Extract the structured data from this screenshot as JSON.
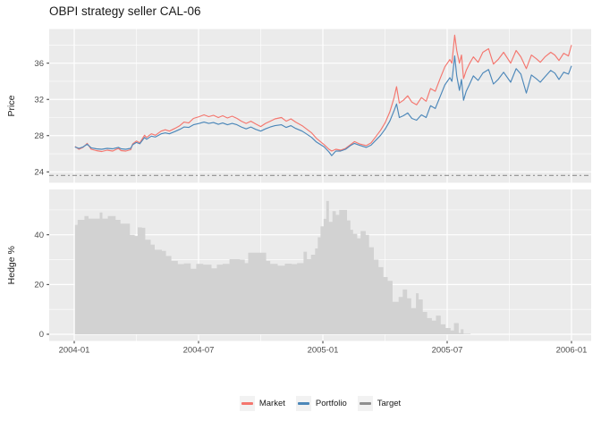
{
  "header": {
    "title": "OBPI strategy seller CAL-06"
  },
  "chart_data": {
    "type": "line+area",
    "title": "OBPI strategy seller CAL-06",
    "panels": [
      {
        "name": "price",
        "ylabel": "Price",
        "yticks": [
          24,
          28,
          32,
          36
        ],
        "yminor": [
          26,
          30,
          34,
          38
        ],
        "ylim": [
          22.8,
          39.8
        ]
      },
      {
        "name": "hedge",
        "ylabel": "Hedge %",
        "yticks": [
          0,
          20,
          40
        ],
        "yminor": [
          10,
          30,
          50
        ],
        "ylim": [
          -2.9,
          58.3
        ]
      }
    ],
    "x": {
      "ticks": [
        "2004-01",
        "2004-07",
        "2005-01",
        "2005-07",
        "2006-01"
      ],
      "minor": [
        "2004-04",
        "2004-10",
        "2005-04",
        "2005-10"
      ],
      "domain_months": [
        -1.21,
        24.95
      ]
    },
    "target_value": 23.6,
    "legend": [
      {
        "label": "Market",
        "color": "#F4766E"
      },
      {
        "label": "Portfolio",
        "color": "#4C87B9"
      },
      {
        "label": "Target",
        "color": "#8F8F8F"
      }
    ],
    "colors": {
      "panel_bg": "#EBEBEB",
      "grid": "#FFFFFF",
      "hedge_fill": "#D2D2D2",
      "tick_text": "#4D4D4D",
      "tick_mark": "#333333",
      "text": "#1A1A1A"
    },
    "price_points": [
      [
        "2004-01-02",
        26.8,
        26.75
      ],
      [
        "2004-01-08",
        26.5,
        26.6
      ],
      [
        "2004-01-14",
        26.7,
        26.75
      ],
      [
        "2004-01-20",
        27.15,
        27.05
      ],
      [
        "2004-01-26",
        26.5,
        26.65
      ],
      [
        "2004-02-03",
        26.35,
        26.55
      ],
      [
        "2004-02-11",
        26.25,
        26.5
      ],
      [
        "2004-02-19",
        26.4,
        26.6
      ],
      [
        "2004-02-27",
        26.3,
        26.55
      ],
      [
        "2004-03-05",
        26.6,
        26.7
      ],
      [
        "2004-03-09",
        26.35,
        26.55
      ],
      [
        "2004-03-16",
        26.3,
        26.5
      ],
      [
        "2004-03-23",
        26.45,
        26.6
      ],
      [
        "2004-03-26",
        27.1,
        27.0
      ],
      [
        "2004-04-01",
        27.4,
        27.25
      ],
      [
        "2004-04-06",
        27.2,
        27.1
      ],
      [
        "2004-04-13",
        28.05,
        27.8
      ],
      [
        "2004-04-16",
        27.8,
        27.6
      ],
      [
        "2004-04-23",
        28.2,
        27.95
      ],
      [
        "2004-04-29",
        28.05,
        27.85
      ],
      [
        "2004-05-07",
        28.5,
        28.2
      ],
      [
        "2004-05-13",
        28.65,
        28.3
      ],
      [
        "2004-05-19",
        28.5,
        28.2
      ],
      [
        "2004-05-27",
        28.8,
        28.45
      ],
      [
        "2004-06-04",
        29.1,
        28.7
      ],
      [
        "2004-06-10",
        29.5,
        28.95
      ],
      [
        "2004-06-17",
        29.4,
        28.9
      ],
      [
        "2004-06-24",
        29.9,
        29.2
      ],
      [
        "2004-07-02",
        30.1,
        29.35
      ],
      [
        "2004-07-09",
        30.3,
        29.5
      ],
      [
        "2004-07-16",
        30.1,
        29.35
      ],
      [
        "2004-07-23",
        30.25,
        29.45
      ],
      [
        "2004-07-30",
        30.0,
        29.25
      ],
      [
        "2004-08-06",
        30.2,
        29.4
      ],
      [
        "2004-08-13",
        29.95,
        29.2
      ],
      [
        "2004-08-20",
        30.15,
        29.35
      ],
      [
        "2004-08-27",
        29.9,
        29.2
      ],
      [
        "2004-09-03",
        29.6,
        28.95
      ],
      [
        "2004-09-10",
        29.35,
        28.75
      ],
      [
        "2004-09-17",
        29.6,
        28.95
      ],
      [
        "2004-09-24",
        29.3,
        28.7
      ],
      [
        "2004-10-01",
        29.0,
        28.5
      ],
      [
        "2004-10-08",
        29.35,
        28.75
      ],
      [
        "2004-10-15",
        29.6,
        28.95
      ],
      [
        "2004-10-22",
        29.85,
        29.1
      ],
      [
        "2004-11-01",
        30.0,
        29.2
      ],
      [
        "2004-11-08",
        29.6,
        28.9
      ],
      [
        "2004-11-15",
        29.85,
        29.1
      ],
      [
        "2004-11-22",
        29.5,
        28.8
      ],
      [
        "2004-12-01",
        29.1,
        28.5
      ],
      [
        "2004-12-08",
        28.7,
        28.15
      ],
      [
        "2004-12-15",
        28.3,
        27.8
      ],
      [
        "2004-12-22",
        27.7,
        27.3
      ],
      [
        "2005-01-03",
        27.0,
        26.75
      ],
      [
        "2005-01-10",
        26.5,
        26.2
      ],
      [
        "2005-01-14",
        26.3,
        25.8
      ],
      [
        "2005-01-20",
        26.5,
        26.3
      ],
      [
        "2005-01-27",
        26.4,
        26.3
      ],
      [
        "2005-02-04",
        26.6,
        26.5
      ],
      [
        "2005-02-11",
        27.0,
        26.9
      ],
      [
        "2005-02-17",
        27.35,
        27.15
      ],
      [
        "2005-02-24",
        27.1,
        26.95
      ],
      [
        "2005-03-04",
        26.9,
        26.7
      ],
      [
        "2005-03-11",
        27.2,
        26.95
      ],
      [
        "2005-03-18",
        27.9,
        27.5
      ],
      [
        "2005-03-25",
        28.6,
        28.05
      ],
      [
        "2005-04-01",
        29.4,
        28.7
      ],
      [
        "2005-04-08",
        30.6,
        29.6
      ],
      [
        "2005-04-14",
        32.1,
        30.7
      ],
      [
        "2005-04-18",
        33.4,
        31.5
      ],
      [
        "2005-04-22",
        31.6,
        30.0
      ],
      [
        "2005-04-28",
        31.9,
        30.2
      ],
      [
        "2005-05-04",
        32.4,
        30.5
      ],
      [
        "2005-05-10",
        31.7,
        29.9
      ],
      [
        "2005-05-17",
        31.4,
        29.7
      ],
      [
        "2005-05-24",
        32.2,
        30.3
      ],
      [
        "2005-05-31",
        31.8,
        30.0
      ],
      [
        "2005-06-07",
        33.2,
        31.3
      ],
      [
        "2005-06-14",
        32.9,
        31.0
      ],
      [
        "2005-06-21",
        34.3,
        32.3
      ],
      [
        "2005-06-28",
        35.6,
        33.6
      ],
      [
        "2005-07-05",
        36.4,
        34.4
      ],
      [
        "2005-07-08",
        36.0,
        34.0
      ],
      [
        "2005-07-12",
        39.1,
        36.8
      ],
      [
        "2005-07-15",
        37.4,
        34.6
      ],
      [
        "2005-07-19",
        36.0,
        33.0
      ],
      [
        "2005-07-22",
        36.9,
        34.2
      ],
      [
        "2005-07-25",
        34.3,
        31.9
      ],
      [
        "2005-07-29",
        35.2,
        32.9
      ],
      [
        "2005-08-03",
        35.9,
        33.6
      ],
      [
        "2005-08-09",
        36.7,
        34.6
      ],
      [
        "2005-08-16",
        36.1,
        34.1
      ],
      [
        "2005-08-23",
        37.2,
        34.9
      ],
      [
        "2005-09-01",
        37.6,
        35.3
      ],
      [
        "2005-09-08",
        35.9,
        33.7
      ],
      [
        "2005-09-15",
        36.4,
        34.2
      ],
      [
        "2005-09-23",
        37.2,
        35.0
      ],
      [
        "2005-10-03",
        36.0,
        33.9
      ],
      [
        "2005-10-11",
        37.4,
        35.4
      ],
      [
        "2005-10-18",
        36.7,
        34.8
      ],
      [
        "2005-10-26",
        35.4,
        32.7
      ],
      [
        "2005-11-03",
        36.9,
        34.7
      ],
      [
        "2005-11-10",
        36.5,
        34.3
      ],
      [
        "2005-11-16",
        36.1,
        33.9
      ],
      [
        "2005-11-23",
        36.7,
        34.5
      ],
      [
        "2005-12-01",
        37.2,
        35.2
      ],
      [
        "2005-12-07",
        36.9,
        34.9
      ],
      [
        "2005-12-13",
        36.3,
        34.2
      ],
      [
        "2005-12-20",
        37.1,
        35.0
      ],
      [
        "2005-12-27",
        36.8,
        34.8
      ],
      [
        "2006-01-01",
        38.0,
        35.7
      ]
    ],
    "hedge_points": [
      [
        "2004-01-02",
        44
      ],
      [
        "2004-01-06",
        46
      ],
      [
        "2004-01-12",
        46
      ],
      [
        "2004-01-16",
        47.5
      ],
      [
        "2004-01-22",
        46.5
      ],
      [
        "2004-02-01",
        46.5
      ],
      [
        "2004-02-08",
        49
      ],
      [
        "2004-02-12",
        46.5
      ],
      [
        "2004-02-20",
        47.5
      ],
      [
        "2004-03-01",
        46
      ],
      [
        "2004-03-08",
        44.5
      ],
      [
        "2004-03-16",
        44.5
      ],
      [
        "2004-03-22",
        40
      ],
      [
        "2004-03-29",
        39.5
      ],
      [
        "2004-04-03",
        43
      ],
      [
        "2004-04-09",
        42.8
      ],
      [
        "2004-04-14",
        38
      ],
      [
        "2004-04-22",
        36
      ],
      [
        "2004-04-28",
        34
      ],
      [
        "2004-05-08",
        33.5
      ],
      [
        "2004-05-14",
        31.5
      ],
      [
        "2004-05-22",
        29.5
      ],
      [
        "2004-06-01",
        28.2
      ],
      [
        "2004-06-10",
        28.5
      ],
      [
        "2004-06-20",
        26.3
      ],
      [
        "2004-06-28",
        28.3
      ],
      [
        "2004-07-08",
        28
      ],
      [
        "2004-07-20",
        26.5
      ],
      [
        "2004-07-28",
        28
      ],
      [
        "2004-08-06",
        28.3
      ],
      [
        "2004-08-16",
        30.2
      ],
      [
        "2004-09-01",
        30
      ],
      [
        "2004-09-08",
        28.6
      ],
      [
        "2004-09-13",
        32.8
      ],
      [
        "2004-10-01",
        32.8
      ],
      [
        "2004-10-09",
        29.5
      ],
      [
        "2004-10-15",
        28.3
      ],
      [
        "2004-10-26",
        27.6
      ],
      [
        "2004-11-06",
        28.4
      ],
      [
        "2004-11-16",
        28.2
      ],
      [
        "2004-11-24",
        28.6
      ],
      [
        "2004-12-03",
        33.2
      ],
      [
        "2004-12-08",
        30.2
      ],
      [
        "2004-12-14",
        32
      ],
      [
        "2004-12-20",
        34.5
      ],
      [
        "2004-12-24",
        39
      ],
      [
        "2004-12-28",
        43.4
      ],
      [
        "2005-01-02",
        46.4
      ],
      [
        "2005-01-06",
        53.6
      ],
      [
        "2005-01-10",
        45.2
      ],
      [
        "2005-01-15",
        49.5
      ],
      [
        "2005-01-20",
        48
      ],
      [
        "2005-01-25",
        50
      ],
      [
        "2005-02-01",
        50
      ],
      [
        "2005-02-06",
        45.8
      ],
      [
        "2005-02-11",
        42
      ],
      [
        "2005-02-15",
        40.4
      ],
      [
        "2005-02-21",
        38.6
      ],
      [
        "2005-02-26",
        41.5
      ],
      [
        "2005-03-03",
        40
      ],
      [
        "2005-03-08",
        35
      ],
      [
        "2005-03-15",
        30
      ],
      [
        "2005-03-22",
        27
      ],
      [
        "2005-03-29",
        23
      ],
      [
        "2005-04-05",
        21.5
      ],
      [
        "2005-04-12",
        13
      ],
      [
        "2005-04-21",
        15
      ],
      [
        "2005-04-27",
        18
      ],
      [
        "2005-05-03",
        14.5
      ],
      [
        "2005-05-09",
        10.5
      ],
      [
        "2005-05-16",
        16.5
      ],
      [
        "2005-05-20",
        14
      ],
      [
        "2005-05-26",
        9
      ],
      [
        "2005-06-02",
        6.5
      ],
      [
        "2005-06-09",
        5.5
      ],
      [
        "2005-06-15",
        7.5
      ],
      [
        "2005-06-22",
        4
      ],
      [
        "2005-06-29",
        2.5
      ],
      [
        "2005-07-06",
        1.5
      ],
      [
        "2005-07-11",
        4.5
      ],
      [
        "2005-07-15",
        4.5
      ],
      [
        "2005-07-18",
        0.5
      ],
      [
        "2005-07-21",
        2
      ],
      [
        "2005-07-25",
        0.2
      ],
      [
        "2005-08-05",
        0
      ],
      [
        "2005-09-15",
        0
      ],
      [
        "2005-11-01",
        0
      ],
      [
        "2006-01-01",
        0
      ]
    ]
  }
}
